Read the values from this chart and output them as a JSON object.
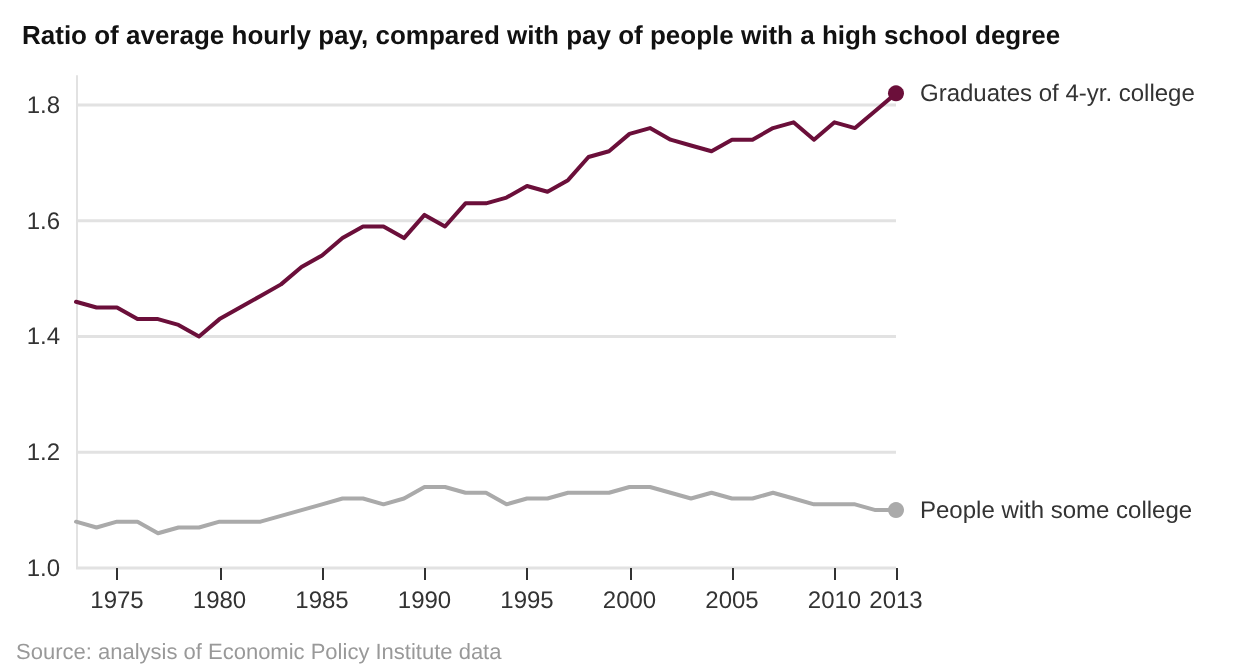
{
  "chart_data": {
    "type": "line",
    "title": "Ratio of average hourly pay, compared with pay of people with a high school degree",
    "x": [
      1973,
      1974,
      1975,
      1976,
      1977,
      1978,
      1979,
      1980,
      1981,
      1982,
      1983,
      1984,
      1985,
      1986,
      1987,
      1988,
      1989,
      1990,
      1991,
      1992,
      1993,
      1994,
      1995,
      1996,
      1997,
      1998,
      1999,
      2000,
      2001,
      2002,
      2003,
      2004,
      2005,
      2006,
      2007,
      2008,
      2009,
      2010,
      2011,
      2012,
      2013
    ],
    "series": [
      {
        "name": "Graduates of 4-yr. college",
        "color": "#6b0f3a",
        "values": [
          1.46,
          1.45,
          1.45,
          1.43,
          1.43,
          1.42,
          1.4,
          1.43,
          1.45,
          1.47,
          1.49,
          1.52,
          1.54,
          1.57,
          1.59,
          1.59,
          1.57,
          1.61,
          1.59,
          1.63,
          1.63,
          1.64,
          1.66,
          1.65,
          1.67,
          1.71,
          1.72,
          1.75,
          1.76,
          1.74,
          1.73,
          1.72,
          1.74,
          1.74,
          1.76,
          1.77,
          1.74,
          1.77,
          1.76,
          1.79,
          1.82
        ]
      },
      {
        "name": "People with some college",
        "color": "#aaaaaa",
        "values": [
          1.08,
          1.07,
          1.08,
          1.08,
          1.06,
          1.07,
          1.07,
          1.08,
          1.08,
          1.08,
          1.09,
          1.1,
          1.11,
          1.12,
          1.12,
          1.11,
          1.12,
          1.14,
          1.14,
          1.13,
          1.13,
          1.11,
          1.12,
          1.12,
          1.13,
          1.13,
          1.13,
          1.14,
          1.14,
          1.13,
          1.12,
          1.13,
          1.12,
          1.12,
          1.13,
          1.12,
          1.11,
          1.11,
          1.11,
          1.1,
          1.1
        ]
      }
    ],
    "xlim": [
      1973,
      2013
    ],
    "xticks": [
      1975,
      1980,
      1985,
      1990,
      1995,
      2000,
      2005,
      2010,
      2013
    ],
    "ylim": [
      1.0,
      1.85
    ],
    "yticks": [
      {
        "value": 1.0,
        "label": "1.0"
      },
      1.2,
      1.4,
      1.6,
      1.8
    ],
    "grid": "y",
    "legend": false,
    "line_style": "solid",
    "annotations": [
      "Source: analysis of Economic Policy Institute data"
    ]
  }
}
